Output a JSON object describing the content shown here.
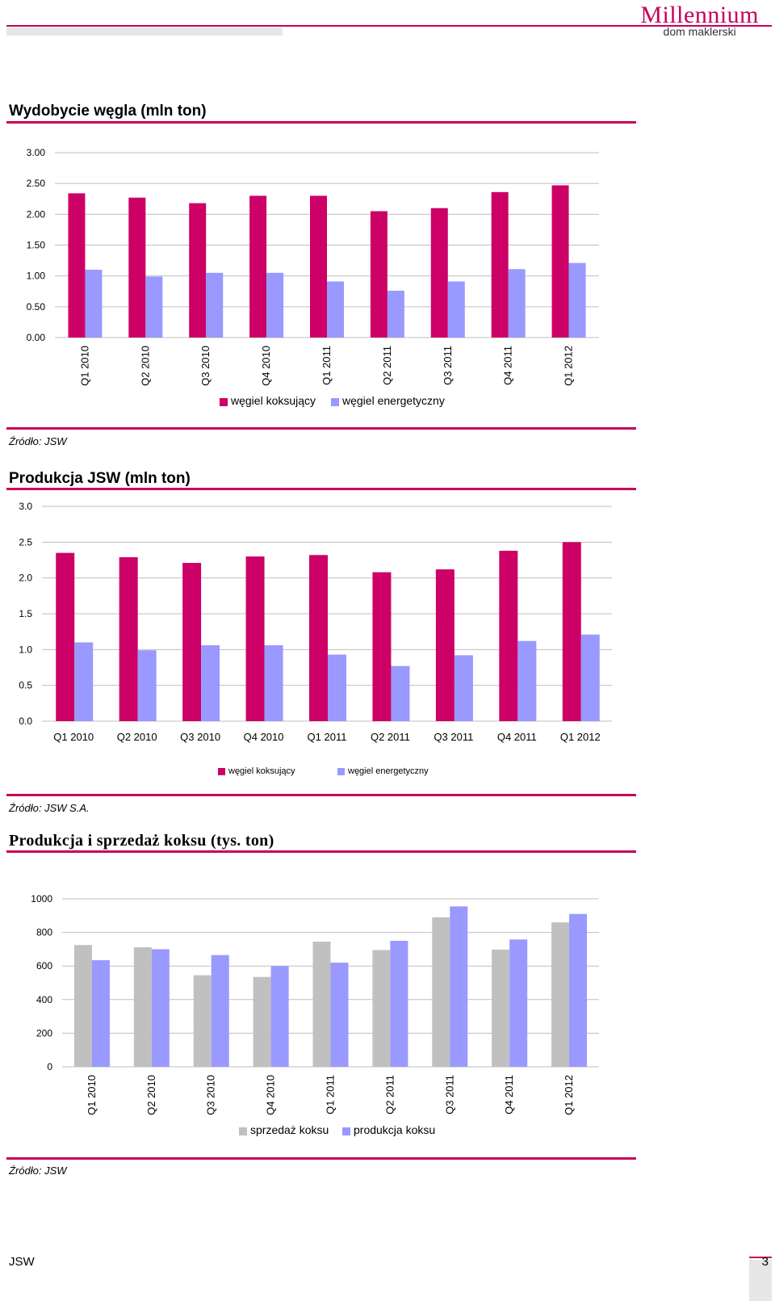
{
  "header": {
    "logo_main": "Millennium",
    "logo_sub": "dom maklerski"
  },
  "colors": {
    "accent": "#c8005a",
    "coking": "#cc0066",
    "energy": "#9999ff",
    "sales": "#c0c0c0",
    "production": "#9999ff",
    "grid": "#bfbfbf"
  },
  "sections": [
    {
      "title": "Wydobycie węgla (mln ton)",
      "source": "Źródło: JSW"
    },
    {
      "title": "Produkcja JSW (mln ton)",
      "source": "Źródło: JSW S.A."
    },
    {
      "title": "Produkcja i sprzedaż koksu (tys. ton)",
      "source": "Źródło: JSW"
    }
  ],
  "footer": {
    "left": "JSW",
    "page": "3"
  },
  "chart_data": [
    {
      "type": "bar",
      "title": "Wydobycie węgla (mln ton)",
      "categories": [
        "Q1 2010",
        "Q2 2010",
        "Q3 2010",
        "Q4 2010",
        "Q1 2011",
        "Q2 2011",
        "Q3 2011",
        "Q4 2011",
        "Q1 2012"
      ],
      "series": [
        {
          "name": "węgiel koksujący",
          "values": [
            2.34,
            2.27,
            2.18,
            2.3,
            2.3,
            2.05,
            2.1,
            2.36,
            2.47
          ]
        },
        {
          "name": "węgiel energetyczny",
          "values": [
            1.1,
            0.99,
            1.05,
            1.05,
            0.91,
            0.76,
            0.91,
            1.11,
            1.21
          ]
        }
      ],
      "yticks": [
        "0.00",
        "0.50",
        "1.00",
        "1.50",
        "2.00",
        "2.50",
        "3.00"
      ],
      "ylim": [
        0,
        3
      ],
      "legend": "bottom",
      "grid": true
    },
    {
      "type": "bar",
      "title": "Produkcja JSW (mln ton)",
      "categories": [
        "Q1 2010",
        "Q2 2010",
        "Q3 2010",
        "Q4 2010",
        "Q1 2011",
        "Q2 2011",
        "Q3 2011",
        "Q4 2011",
        "Q1 2012"
      ],
      "series": [
        {
          "name": "węgiel koksujący",
          "values": [
            2.35,
            2.29,
            2.21,
            2.3,
            2.32,
            2.08,
            2.12,
            2.38,
            2.5
          ]
        },
        {
          "name": "węgiel energetyczny",
          "values": [
            1.1,
            0.99,
            1.06,
            1.06,
            0.93,
            0.77,
            0.92,
            1.12,
            1.21
          ]
        }
      ],
      "yticks": [
        "0.0",
        "0.5",
        "1.0",
        "1.5",
        "2.0",
        "2.5",
        "3.0"
      ],
      "ylim": [
        0,
        3
      ],
      "legend": "bottom",
      "grid": true
    },
    {
      "type": "bar",
      "title": "Produkcja i sprzedaż koksu (tys. ton)",
      "categories": [
        "Q1 2010",
        "Q2 2010",
        "Q3 2010",
        "Q4 2010",
        "Q1 2011",
        "Q2 2011",
        "Q3 2011",
        "Q4 2011",
        "Q1 2012"
      ],
      "series": [
        {
          "name": "sprzedaż koksu",
          "values": [
            725,
            712,
            545,
            535,
            745,
            695,
            890,
            698,
            860
          ]
        },
        {
          "name": "produkcja koksu",
          "values": [
            635,
            700,
            665,
            600,
            620,
            750,
            955,
            758,
            910
          ]
        }
      ],
      "yticks": [
        "0",
        "200",
        "400",
        "600",
        "800",
        "1000"
      ],
      "ylim": [
        0,
        1000
      ],
      "legend": "bottom",
      "grid": true
    }
  ]
}
